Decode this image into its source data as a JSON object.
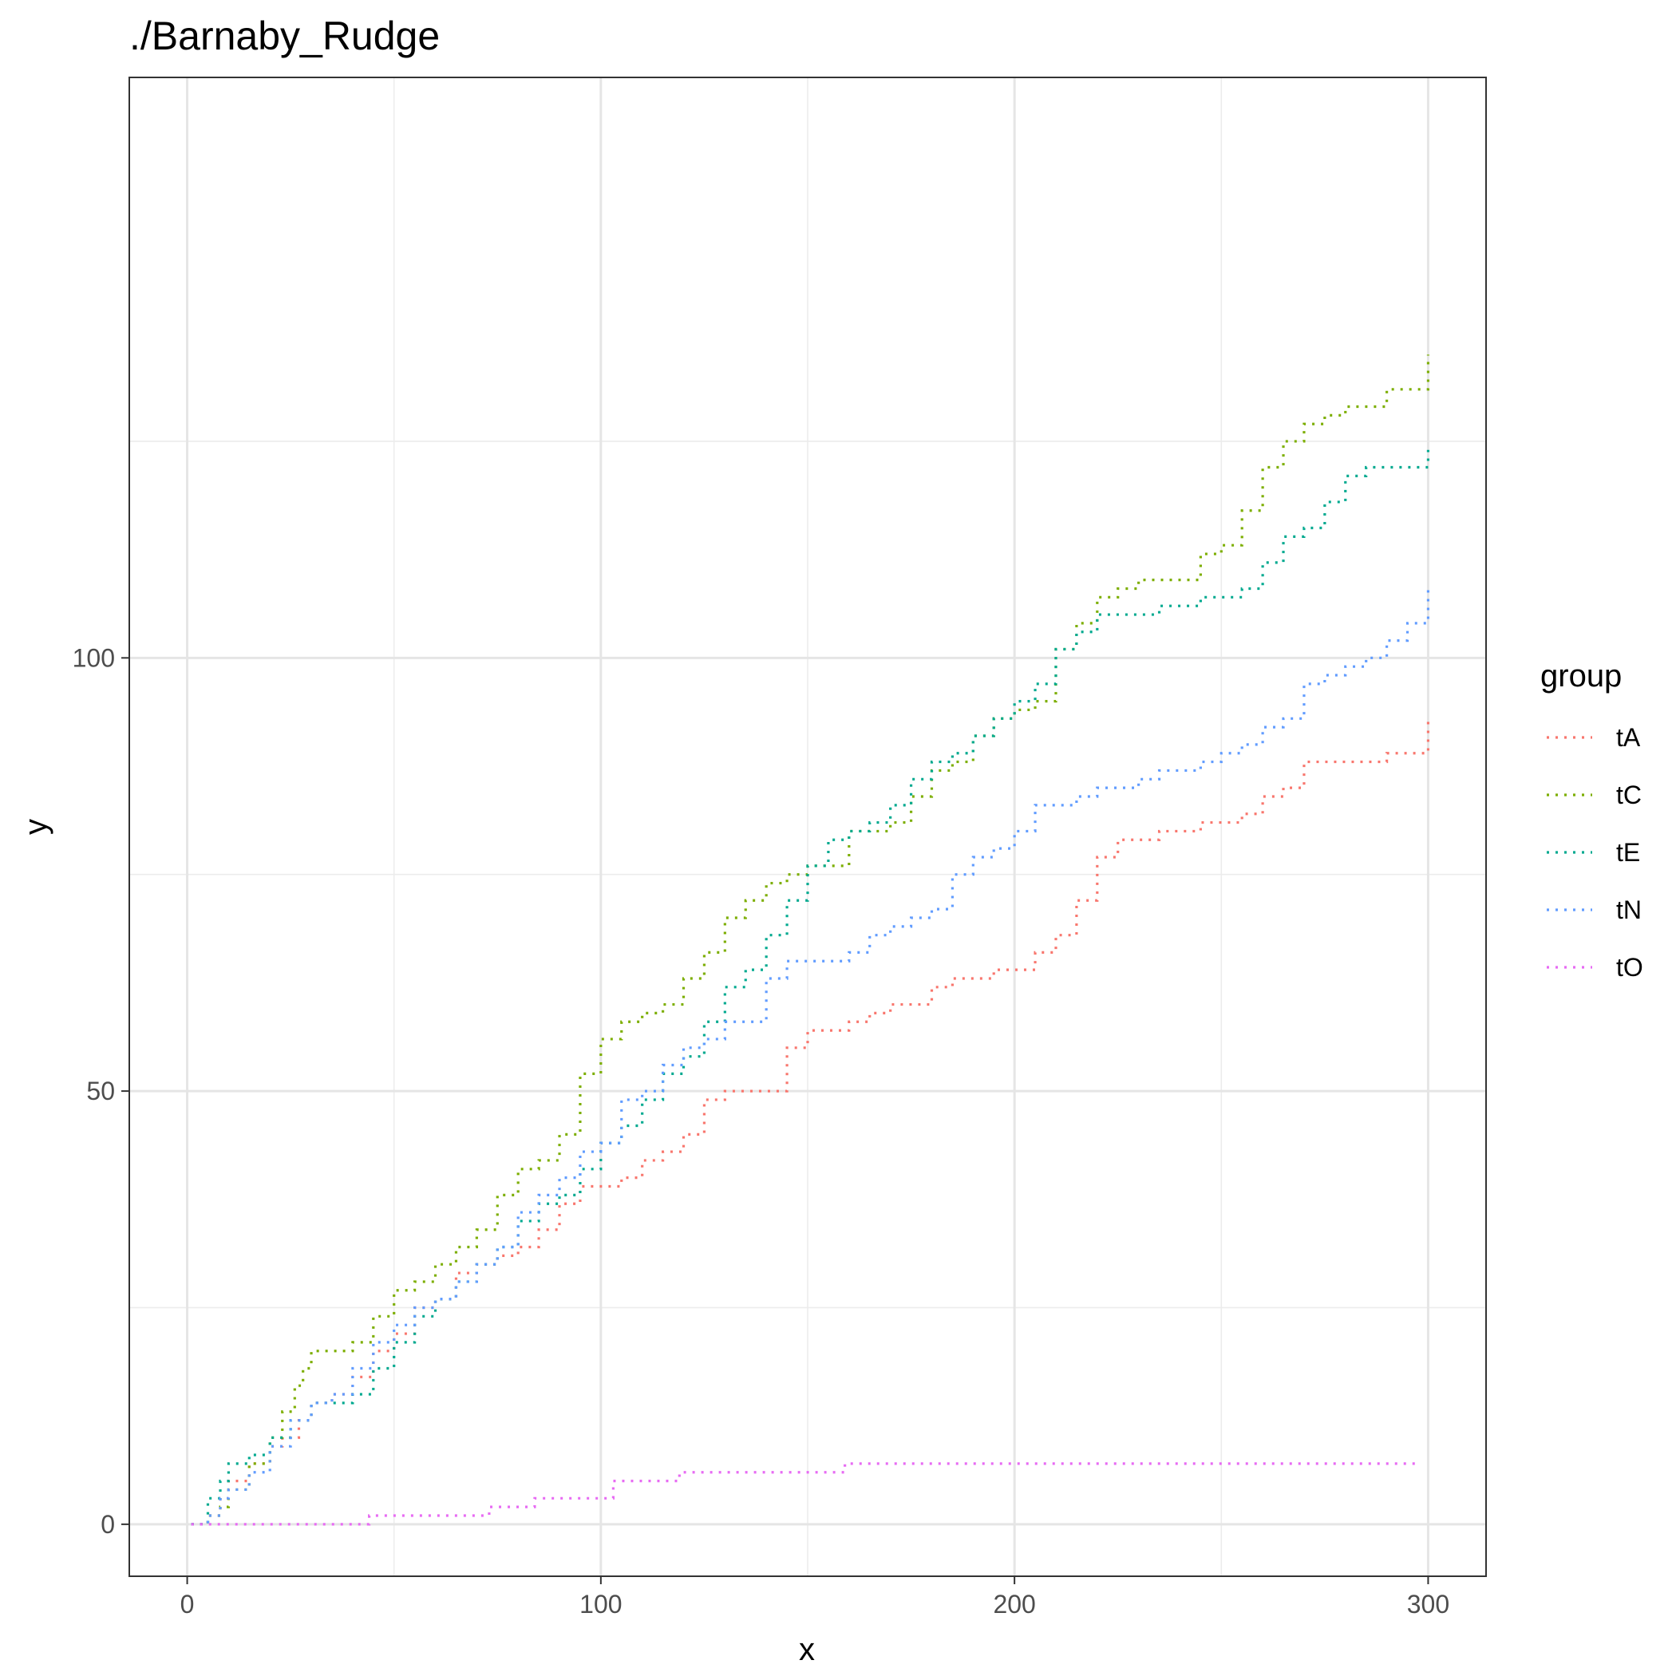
{
  "chart_data": {
    "type": "line",
    "title": "./Barnaby_Rudge",
    "xlabel": "x",
    "ylabel": "y",
    "xlim": [
      -14,
      314
    ],
    "ylim": [
      -6,
      167
    ],
    "x_ticks": [
      0,
      100,
      200,
      300
    ],
    "y_ticks": [
      0,
      50,
      100
    ],
    "x_minor": [
      50,
      150,
      250
    ],
    "y_minor": [
      25,
      75,
      125
    ],
    "grid": true,
    "legend": {
      "title": "group",
      "position": "right"
    },
    "line_style": "dotted",
    "series": [
      {
        "name": "tA",
        "color": "#F8766D",
        "points": [
          [
            1,
            0
          ],
          [
            3,
            0
          ],
          [
            5,
            1
          ],
          [
            8,
            3
          ],
          [
            10,
            5
          ],
          [
            15,
            7
          ],
          [
            20,
            9
          ],
          [
            23,
            10
          ],
          [
            27,
            12
          ],
          [
            30,
            14
          ],
          [
            35,
            15
          ],
          [
            40,
            17
          ],
          [
            45,
            20
          ],
          [
            50,
            22
          ],
          [
            55,
            25
          ],
          [
            60,
            26
          ],
          [
            65,
            29
          ],
          [
            70,
            30
          ],
          [
            75,
            31
          ],
          [
            80,
            32
          ],
          [
            85,
            34
          ],
          [
            90,
            37
          ],
          [
            95,
            39
          ],
          [
            100,
            39
          ],
          [
            105,
            40
          ],
          [
            110,
            42
          ],
          [
            115,
            43
          ],
          [
            120,
            45
          ],
          [
            125,
            49
          ],
          [
            130,
            50
          ],
          [
            140,
            50
          ],
          [
            145,
            55
          ],
          [
            150,
            57
          ],
          [
            155,
            57
          ],
          [
            160,
            58
          ],
          [
            165,
            59
          ],
          [
            170,
            60
          ],
          [
            180,
            62
          ],
          [
            185,
            63
          ],
          [
            195,
            64
          ],
          [
            205,
            66
          ],
          [
            210,
            68
          ],
          [
            215,
            72
          ],
          [
            220,
            77
          ],
          [
            225,
            79
          ],
          [
            230,
            79
          ],
          [
            235,
            80
          ],
          [
            240,
            80
          ],
          [
            245,
            81
          ],
          [
            250,
            81
          ],
          [
            255,
            82
          ],
          [
            260,
            84
          ],
          [
            265,
            85
          ],
          [
            270,
            88
          ],
          [
            285,
            88
          ],
          [
            290,
            89
          ],
          [
            295,
            89
          ],
          [
            300,
            93
          ]
        ]
      },
      {
        "name": "tC",
        "color": "#7CAE00",
        "points": [
          [
            1,
            0
          ],
          [
            3,
            0
          ],
          [
            5,
            1
          ],
          [
            8,
            2
          ],
          [
            10,
            4
          ],
          [
            15,
            7
          ],
          [
            20,
            10
          ],
          [
            23,
            13
          ],
          [
            26,
            16
          ],
          [
            28,
            18
          ],
          [
            30,
            20
          ],
          [
            35,
            20
          ],
          [
            40,
            21
          ],
          [
            45,
            24
          ],
          [
            50,
            27
          ],
          [
            55,
            28
          ],
          [
            60,
            30
          ],
          [
            65,
            32
          ],
          [
            70,
            34
          ],
          [
            75,
            38
          ],
          [
            80,
            41
          ],
          [
            85,
            42
          ],
          [
            90,
            45
          ],
          [
            95,
            52
          ],
          [
            100,
            56
          ],
          [
            105,
            58
          ],
          [
            110,
            59
          ],
          [
            115,
            60
          ],
          [
            120,
            63
          ],
          [
            125,
            66
          ],
          [
            130,
            70
          ],
          [
            135,
            72
          ],
          [
            140,
            74
          ],
          [
            145,
            75
          ],
          [
            150,
            76
          ],
          [
            155,
            76
          ],
          [
            160,
            80
          ],
          [
            165,
            80
          ],
          [
            170,
            81
          ],
          [
            175,
            84
          ],
          [
            180,
            87
          ],
          [
            185,
            88
          ],
          [
            190,
            91
          ],
          [
            195,
            93
          ],
          [
            200,
            94
          ],
          [
            205,
            95
          ],
          [
            210,
            101
          ],
          [
            215,
            104
          ],
          [
            220,
            107
          ],
          [
            225,
            108
          ],
          [
            230,
            109
          ],
          [
            240,
            109
          ],
          [
            245,
            112
          ],
          [
            250,
            113
          ],
          [
            255,
            117
          ],
          [
            260,
            122
          ],
          [
            265,
            125
          ],
          [
            270,
            127
          ],
          [
            275,
            128
          ],
          [
            280,
            129
          ],
          [
            285,
            129
          ],
          [
            290,
            131
          ],
          [
            295,
            131
          ],
          [
            300,
            135
          ]
        ]
      },
      {
        "name": "tE",
        "color": "#00BFC4",
        "stroke_override": "#00A98F",
        "points": [
          [
            1,
            0
          ],
          [
            3,
            0
          ],
          [
            5,
            3
          ],
          [
            8,
            5
          ],
          [
            10,
            7
          ],
          [
            15,
            8
          ],
          [
            20,
            10
          ],
          [
            25,
            12
          ],
          [
            30,
            14
          ],
          [
            35,
            14
          ],
          [
            40,
            15
          ],
          [
            45,
            18
          ],
          [
            50,
            21
          ],
          [
            55,
            24
          ],
          [
            60,
            26
          ],
          [
            65,
            28
          ],
          [
            70,
            30
          ],
          [
            75,
            32
          ],
          [
            80,
            35
          ],
          [
            85,
            37
          ],
          [
            90,
            38
          ],
          [
            95,
            41
          ],
          [
            100,
            44
          ],
          [
            105,
            46
          ],
          [
            110,
            49
          ],
          [
            115,
            52
          ],
          [
            120,
            54
          ],
          [
            125,
            58
          ],
          [
            130,
            62
          ],
          [
            135,
            64
          ],
          [
            140,
            68
          ],
          [
            145,
            72
          ],
          [
            150,
            76
          ],
          [
            155,
            79
          ],
          [
            160,
            80
          ],
          [
            165,
            81
          ],
          [
            170,
            83
          ],
          [
            175,
            86
          ],
          [
            180,
            88
          ],
          [
            185,
            89
          ],
          [
            190,
            91
          ],
          [
            195,
            93
          ],
          [
            200,
            95
          ],
          [
            205,
            97
          ],
          [
            210,
            101
          ],
          [
            215,
            103
          ],
          [
            220,
            105
          ],
          [
            230,
            105
          ],
          [
            235,
            106
          ],
          [
            240,
            106
          ],
          [
            245,
            107
          ],
          [
            250,
            107
          ],
          [
            255,
            108
          ],
          [
            260,
            111
          ],
          [
            265,
            114
          ],
          [
            270,
            115
          ],
          [
            275,
            118
          ],
          [
            280,
            121
          ],
          [
            285,
            122
          ],
          [
            290,
            122
          ],
          [
            295,
            122
          ],
          [
            300,
            124
          ]
        ]
      },
      {
        "name": "tN",
        "color": "#00A9FF",
        "stroke_override": "#619CFF",
        "points": [
          [
            1,
            0
          ],
          [
            3,
            0
          ],
          [
            5,
            1
          ],
          [
            8,
            3
          ],
          [
            10,
            4
          ],
          [
            15,
            6
          ],
          [
            20,
            9
          ],
          [
            25,
            12
          ],
          [
            30,
            14
          ],
          [
            35,
            15
          ],
          [
            40,
            18
          ],
          [
            45,
            21
          ],
          [
            50,
            23
          ],
          [
            55,
            25
          ],
          [
            60,
            26
          ],
          [
            65,
            28
          ],
          [
            70,
            30
          ],
          [
            75,
            32
          ],
          [
            80,
            36
          ],
          [
            85,
            38
          ],
          [
            90,
            40
          ],
          [
            95,
            43
          ],
          [
            100,
            44
          ],
          [
            105,
            49
          ],
          [
            110,
            50
          ],
          [
            115,
            53
          ],
          [
            120,
            55
          ],
          [
            125,
            56
          ],
          [
            130,
            58
          ],
          [
            135,
            58
          ],
          [
            140,
            63
          ],
          [
            145,
            65
          ],
          [
            150,
            65
          ],
          [
            160,
            66
          ],
          [
            165,
            68
          ],
          [
            170,
            69
          ],
          [
            175,
            70
          ],
          [
            180,
            71
          ],
          [
            185,
            75
          ],
          [
            190,
            77
          ],
          [
            195,
            78
          ],
          [
            200,
            80
          ],
          [
            205,
            83
          ],
          [
            215,
            84
          ],
          [
            220,
            85
          ],
          [
            230,
            86
          ],
          [
            235,
            87
          ],
          [
            240,
            87
          ],
          [
            245,
            88
          ],
          [
            250,
            89
          ],
          [
            255,
            90
          ],
          [
            260,
            92
          ],
          [
            265,
            93
          ],
          [
            270,
            97
          ],
          [
            275,
            98
          ],
          [
            280,
            99
          ],
          [
            285,
            100
          ],
          [
            290,
            102
          ],
          [
            295,
            104
          ],
          [
            300,
            108
          ]
        ]
      },
      {
        "name": "tO",
        "color": "#E76BF3",
        "points": [
          [
            1,
            0
          ],
          [
            43,
            0
          ],
          [
            44,
            1
          ],
          [
            72,
            1
          ],
          [
            73,
            2
          ],
          [
            83,
            2
          ],
          [
            84,
            3
          ],
          [
            102,
            3
          ],
          [
            103,
            5
          ],
          [
            118,
            5
          ],
          [
            119,
            6
          ],
          [
            158,
            6
          ],
          [
            159,
            7
          ],
          [
            297,
            7
          ]
        ]
      }
    ]
  }
}
